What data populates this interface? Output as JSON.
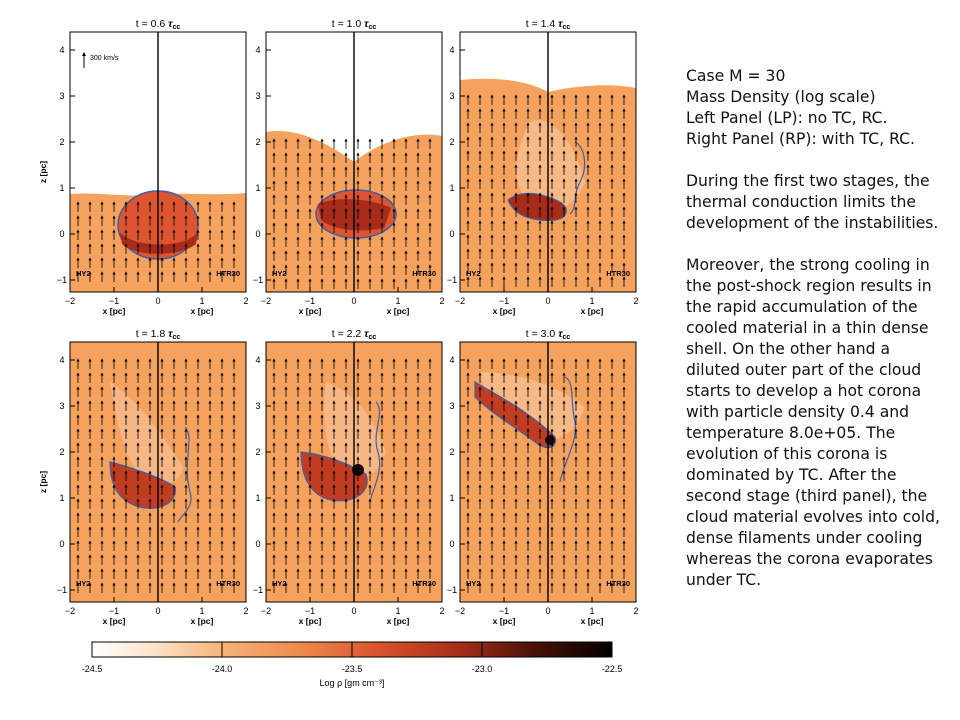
{
  "panels": [
    {
      "time_label": "t = 0.6",
      "left_tag": "HY2",
      "right_tag": "HTR30",
      "velocity_label": "300 km/s"
    },
    {
      "time_label": "t = 1.0",
      "left_tag": "HY2",
      "right_tag": "HTR30"
    },
    {
      "time_label": "t = 1.4",
      "left_tag": "HY2",
      "right_tag": "HTR30"
    },
    {
      "time_label": "t = 1.8",
      "left_tag": "HY2",
      "right_tag": "HTR30"
    },
    {
      "time_label": "t = 2.2",
      "left_tag": "HY2",
      "right_tag": "HTR30"
    },
    {
      "time_label": "t = 3.0",
      "left_tag": "HY2",
      "right_tag": "HTR30"
    }
  ],
  "tau_symbol": "τ",
  "tau_subscript": "cc",
  "axes": {
    "xlabel_left": "x [pc]",
    "xlabel_right": "x [pc]",
    "ylabel": "z [pc]",
    "x_ticks": [
      "−2",
      "−1",
      "0",
      "1",
      "2"
    ],
    "y_ticks": [
      "−1",
      "0",
      "1",
      "2",
      "3",
      "4"
    ]
  },
  "colorbar": {
    "ticks": [
      "-24.5",
      "-24.0",
      "-23.5",
      "-23.0",
      "-22.5"
    ],
    "label": "Log ρ [gm cm⁻³]",
    "range": [
      -24.5,
      -22.5
    ]
  },
  "colors": {
    "ambient": "#f4a25e",
    "cloud": "#dd5530",
    "dense": "#a82a18",
    "contour": "#3e5fa8"
  },
  "description": {
    "lines": [
      "Case M = 30",
      "Mass Density (log scale)",
      "Left Panel (LP): no TC, RC.",
      "Right Panel (RP): with TC, RC."
    ],
    "para1": [
      "During the first two stages, the",
      "thermal conduction limits the",
      "development of the instabilities."
    ],
    "para2": [
      "Moreover, the strong cooling in",
      "the post-shock region results in",
      "the rapid accumulation of the",
      "cooled material in a thin dense",
      "shell. On the other hand a",
      "diluted outer part of the cloud",
      "starts to develop a hot  corona",
      "with particle density 0.4 and",
      "temperature 8.0e+05.  The",
      "evolution of this corona is",
      "dominated by TC. After the",
      "second stage (third panel), the",
      "cloud material evolves into cold,",
      "dense filaments under cooling",
      "whereas the corona evaporates",
      "under TC."
    ]
  }
}
